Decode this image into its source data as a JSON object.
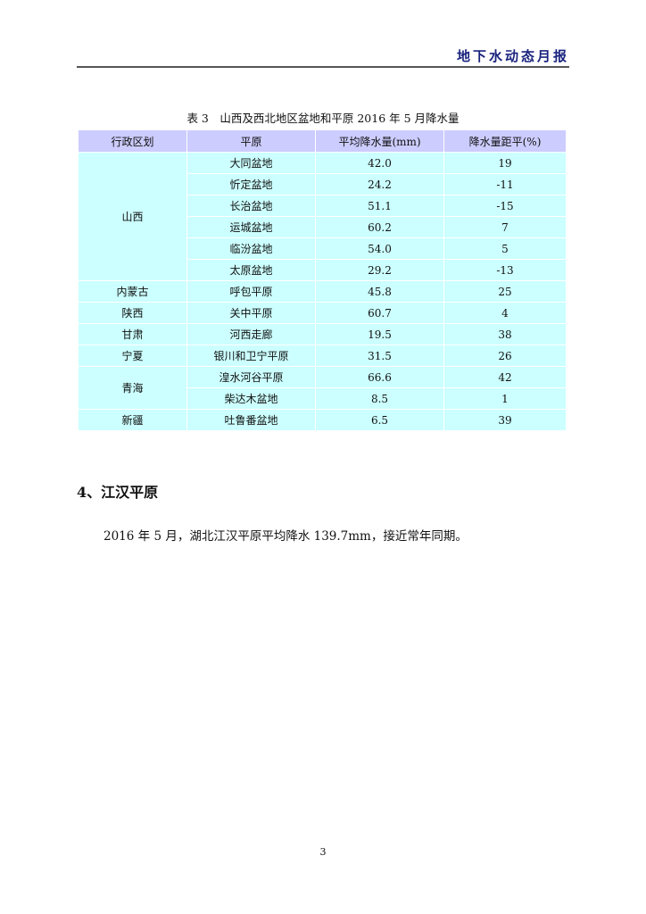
{
  "header": {
    "title": "地下水动态月报"
  },
  "table": {
    "caption": "表 3　山西及西北地区盆地和平原 2016 年 5 月降水量",
    "columns": [
      "行政区划",
      "平原",
      "平均降水量(mm)",
      "降水量距平(%)"
    ],
    "groups": [
      {
        "region": "山西",
        "rows": [
          [
            "大同盆地",
            "42.0",
            "19"
          ],
          [
            "忻定盆地",
            "24.2",
            "-11"
          ],
          [
            "长治盆地",
            "51.1",
            "-15"
          ],
          [
            "运城盆地",
            "60.2",
            "7"
          ],
          [
            "临汾盆地",
            "54.0",
            "5"
          ],
          [
            "太原盆地",
            "29.2",
            "-13"
          ]
        ]
      },
      {
        "region": "内蒙古",
        "rows": [
          [
            "呼包平原",
            "45.8",
            "25"
          ]
        ]
      },
      {
        "region": "陕西",
        "rows": [
          [
            "关中平原",
            "60.7",
            "4"
          ]
        ]
      },
      {
        "region": "甘肃",
        "rows": [
          [
            "河西走廊",
            "19.5",
            "38"
          ]
        ]
      },
      {
        "region": "宁夏",
        "rows": [
          [
            "银川和卫宁平原",
            "31.5",
            "26"
          ]
        ]
      },
      {
        "region": "青海",
        "rows": [
          [
            "湟水河谷平原",
            "66.6",
            "42"
          ],
          [
            "柴达木盆地",
            "8.5",
            "1"
          ]
        ]
      },
      {
        "region": "新疆",
        "rows": [
          [
            "吐鲁番盆地",
            "6.5",
            "39"
          ]
        ]
      }
    ]
  },
  "section": {
    "heading": "4、江汉平原",
    "text": "2016 年 5 月，湖北江汉平原平均降水 139.7mm，接近常年同期。"
  },
  "page_number": "3",
  "colors": {
    "header_row": "#ccccff",
    "body_row": "#ccffff",
    "header_title": "#1a237e"
  }
}
